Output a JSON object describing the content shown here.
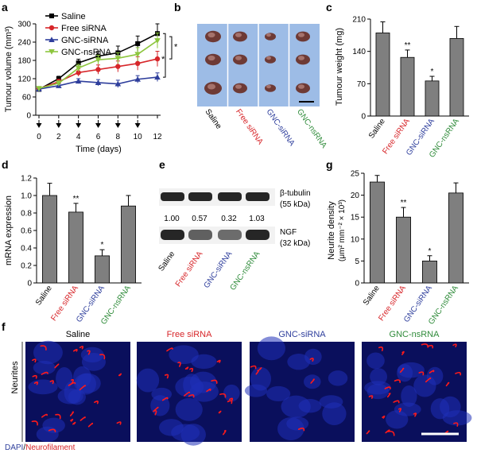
{
  "panel_letters": [
    "a",
    "b",
    "c",
    "d",
    "e",
    "f",
    "g"
  ],
  "colors": {
    "saline": "#000000",
    "free_sirna": "#d7262a",
    "gnc_sirna": "#2e3e9c",
    "gnc_nsrna": "#2f8b3a",
    "bar_fill": "#7f7f7f",
    "gnc_nsrna_line": "#8ec63f",
    "western_band": "#1a1a1a",
    "micrograph_bg": "#0a0f5c",
    "neurofilament": "#ff1a1a"
  },
  "groups": [
    "Saline",
    "Free siRNA",
    "GNC-siRNA",
    "GNC-nsRNA"
  ],
  "chart_data": [
    {
      "id": "a",
      "type": "line",
      "ylabel": "Tumour volume (mm³)",
      "xlabel": "Time  (days)",
      "x": [
        0,
        2,
        4,
        6,
        8,
        10,
        12
      ],
      "xticks": [
        "0",
        "2",
        "4",
        "6",
        "8",
        "10",
        "12"
      ],
      "yticks": [
        "0",
        "60",
        "120",
        "180",
        "240",
        "300"
      ],
      "ylim": [
        0,
        300
      ],
      "xlim": [
        0,
        12
      ],
      "dosing_days": [
        0,
        2,
        4,
        6,
        8,
        10
      ],
      "significance": [
        "*",
        "*"
      ],
      "series": [
        {
          "name": "Saline",
          "color": "#000000",
          "marker": "square",
          "values": [
            85,
            120,
            172,
            194,
            205,
            235,
            268
          ],
          "errors": [
            5,
            8,
            12,
            15,
            22,
            25,
            32
          ]
        },
        {
          "name": "Free siRNA",
          "color": "#d7262a",
          "marker": "circle",
          "values": [
            87,
            110,
            140,
            150,
            160,
            170,
            185
          ],
          "errors": [
            5,
            8,
            12,
            15,
            18,
            22,
            25
          ]
        },
        {
          "name": "GNC-siRNA",
          "color": "#2e3e9c",
          "marker": "triangle",
          "values": [
            86,
            97,
            112,
            107,
            103,
            118,
            125
          ],
          "errors": [
            4,
            6,
            8,
            10,
            12,
            12,
            14
          ]
        },
        {
          "name": "GNC-nsRNA",
          "color": "#8ec63f",
          "marker": "triangle-down",
          "values": [
            88,
            105,
            155,
            182,
            187,
            200,
            245
          ],
          "errors": [
            5,
            8,
            12,
            15,
            18,
            22,
            25
          ]
        }
      ]
    },
    {
      "id": "c",
      "type": "bar",
      "ylabel": "Tumour weight (mg)",
      "categories": [
        "Saline",
        "Free siRNA",
        "GNC-siRNA",
        "GNC-nsRNA"
      ],
      "values": [
        180,
        127,
        76,
        168
      ],
      "errors": [
        24,
        16,
        10,
        26
      ],
      "significance": [
        "",
        "**",
        "*",
        ""
      ],
      "yticks": [
        "0",
        "70",
        "140",
        "210"
      ],
      "ylim": [
        0,
        210
      ]
    },
    {
      "id": "d",
      "type": "bar",
      "ylabel": "mRNA expression",
      "categories": [
        "Saline",
        "Free siRNA",
        "GNC-siRNA",
        "GNC-nsRNA"
      ],
      "values": [
        1.0,
        0.81,
        0.31,
        0.88
      ],
      "errors": [
        0.14,
        0.1,
        0.07,
        0.12
      ],
      "significance": [
        "",
        "**",
        "*",
        ""
      ],
      "yticks": [
        "0",
        "0.2",
        "0.4",
        "0.6",
        "0.8",
        "1.0",
        "1.2"
      ],
      "ylim": [
        0,
        1.2
      ]
    },
    {
      "id": "g",
      "type": "bar",
      "ylabel": "Neurite density",
      "ylabel2": "(μm² mm⁻² × 10³)",
      "categories": [
        "Saline",
        "Free siRNA",
        "GNC-siRNA",
        "GNC-nsRNA"
      ],
      "values": [
        23,
        15,
        5,
        20.5
      ],
      "errors": [
        1.5,
        2.2,
        1.2,
        2.3
      ],
      "significance": [
        "",
        "**",
        "*",
        ""
      ],
      "yticks": [
        "0",
        "5",
        "10",
        "15",
        "20",
        "25"
      ],
      "ylim": [
        0,
        25
      ]
    }
  ],
  "panel_e": {
    "band_label_1": "β-tubulin",
    "band_label_1b": "(55 kDa)",
    "band_label_2": "NGF",
    "band_label_2b": "(32 kDa)",
    "ratios": [
      "1.00",
      "0.57",
      "0.32",
      "1.03"
    ],
    "nf_intensity": [
      1.0,
      0.55,
      0.45,
      1.0
    ]
  },
  "panel_f": {
    "titles": [
      "Saline",
      "Free siRNA",
      "GNC-siRNA",
      "GNC-nsRNA"
    ],
    "side_label": "Neurites",
    "stain_dapi": "DAPI",
    "stain_sep": "/",
    "stain_nf": "Neurofilament"
  }
}
